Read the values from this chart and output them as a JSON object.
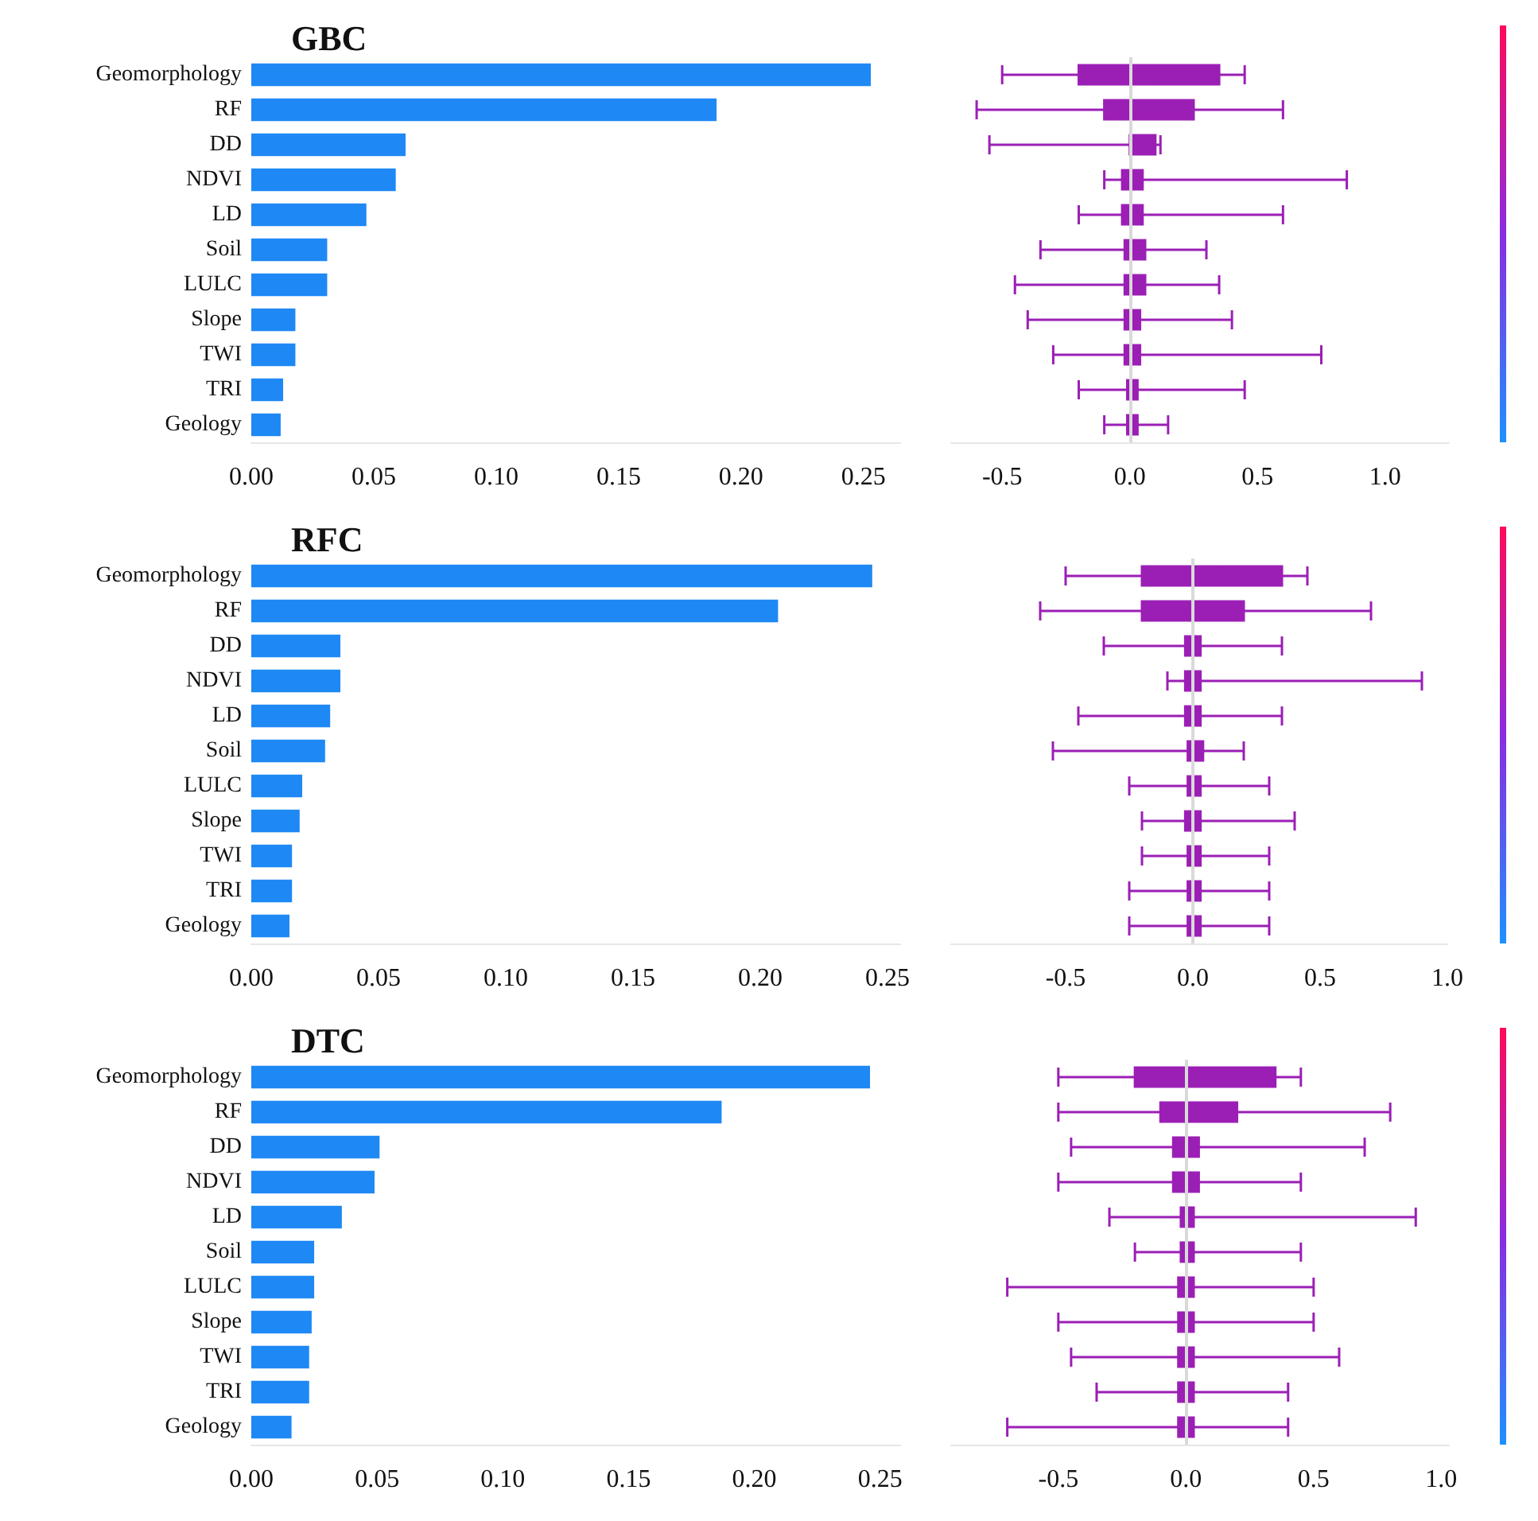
{
  "chart_data": [
    {
      "type": "bar",
      "orientation": "horizontal",
      "title": "GBC",
      "categories": [
        "Geomorphology",
        "RF",
        "DD",
        "NDVI",
        "LD",
        "Soil",
        "LULC",
        "Slope",
        "TWI",
        "TRI",
        "Geology"
      ],
      "series": [
        {
          "color": "#1e88f5",
          "values": [
            0.253,
            0.19,
            0.063,
            0.059,
            0.047,
            0.031,
            0.031,
            0.018,
            0.018,
            0.013,
            0.012
          ]
        }
      ],
      "xlim": [
        0,
        0.265
      ],
      "xticks": [
        {
          "value": 0,
          "label": "0.00"
        },
        {
          "value": 0.05,
          "label": "0.05"
        },
        {
          "value": 0.1,
          "label": "0.10"
        },
        {
          "value": 0.15,
          "label": "0.15"
        },
        {
          "value": 0.2,
          "label": "0.20"
        },
        {
          "value": 0.25,
          "label": "0.25"
        }
      ],
      "grid": false
    },
    {
      "type": "box",
      "orientation": "horizontal",
      "categories": [
        null,
        null,
        null,
        null,
        null,
        null,
        null,
        null,
        null,
        null,
        null
      ],
      "tick_labels": "x",
      "series": [
        {
          "color": "#9b1fb5",
          "boxes": [
            {
              "low": -0.5,
              "q1": -0.2,
              "median": 0.1,
              "q3": 0.35,
              "high": 0.45
            },
            {
              "low": -0.6,
              "q1": -0.1,
              "median": 0.15,
              "q3": 0.25,
              "high": 0.6
            },
            {
              "low": -0.55,
              "q1": 0.0,
              "median": 0.05,
              "q3": 0.1,
              "high": 0.12
            },
            {
              "low": -0.1,
              "q1": -0.03,
              "median": 0.0,
              "q3": 0.05,
              "high": 0.85
            },
            {
              "low": -0.2,
              "q1": -0.03,
              "median": 0.0,
              "q3": 0.05,
              "high": 0.6
            },
            {
              "low": -0.35,
              "q1": -0.02,
              "median": 0.02,
              "q3": 0.06,
              "high": 0.3
            },
            {
              "low": -0.45,
              "q1": -0.02,
              "median": 0.02,
              "q3": 0.06,
              "high": 0.35
            },
            {
              "low": -0.4,
              "q1": -0.02,
              "median": 0.01,
              "q3": 0.04,
              "high": 0.4
            },
            {
              "low": -0.3,
              "q1": -0.02,
              "median": 0.01,
              "q3": 0.04,
              "high": 0.75
            },
            {
              "low": -0.2,
              "q1": -0.01,
              "median": 0.01,
              "q3": 0.03,
              "high": 0.45
            },
            {
              "low": -0.1,
              "q1": -0.01,
              "median": 0.01,
              "q3": 0.03,
              "high": 0.15
            }
          ]
        }
      ],
      "xlim": [
        -0.7,
        1.25
      ],
      "xticks": [
        {
          "value": -0.5,
          "label": "-0.5"
        },
        {
          "value": 0,
          "label": "0.0"
        },
        {
          "value": 0.5,
          "label": "0.5"
        },
        {
          "value": 1,
          "label": "1.0"
        }
      ],
      "ref_lines": [
        {
          "axis": "x",
          "value": 0,
          "color": "#d9d9d9"
        }
      ],
      "grid": false
    },
    {
      "type": "bar",
      "orientation": "horizontal",
      "title": "RFC",
      "categories": [
        "Geomorphology",
        "RF",
        "DD",
        "NDVI",
        "LD",
        "Soil",
        "LULC",
        "Slope",
        "TWI",
        "TRI",
        "Geology"
      ],
      "series": [
        {
          "color": "#1e88f5",
          "values": [
            0.244,
            0.207,
            0.035,
            0.035,
            0.031,
            0.029,
            0.02,
            0.019,
            0.016,
            0.016,
            0.015
          ]
        }
      ],
      "xlim": [
        0,
        0.255
      ],
      "xticks": [
        {
          "value": 0,
          "label": "0.00"
        },
        {
          "value": 0.05,
          "label": "0.05"
        },
        {
          "value": 0.1,
          "label": "0.10"
        },
        {
          "value": 0.15,
          "label": "0.15"
        },
        {
          "value": 0.2,
          "label": "0.20"
        },
        {
          "value": 0.25,
          "label": "0.25"
        }
      ],
      "grid": false
    },
    {
      "type": "box",
      "orientation": "horizontal",
      "categories": [
        null,
        null,
        null,
        null,
        null,
        null,
        null,
        null,
        null,
        null,
        null
      ],
      "tick_labels": "x",
      "series": [
        {
          "color": "#9b1fb5",
          "boxes": [
            {
              "low": -0.5,
              "q1": -0.2,
              "median": 0.1,
              "q3": 0.35,
              "high": 0.45
            },
            {
              "low": -0.6,
              "q1": -0.2,
              "median": 0.1,
              "q3": 0.2,
              "high": 0.7
            },
            {
              "low": -0.35,
              "q1": -0.03,
              "median": 0.0,
              "q3": 0.03,
              "high": 0.35
            },
            {
              "low": -0.1,
              "q1": -0.03,
              "median": 0.0,
              "q3": 0.03,
              "high": 0.9
            },
            {
              "low": -0.45,
              "q1": -0.03,
              "median": 0.0,
              "q3": 0.03,
              "high": 0.35
            },
            {
              "low": -0.55,
              "q1": -0.02,
              "median": 0.01,
              "q3": 0.04,
              "high": 0.2
            },
            {
              "low": -0.25,
              "q1": -0.02,
              "median": 0.0,
              "q3": 0.03,
              "high": 0.3
            },
            {
              "low": -0.2,
              "q1": -0.03,
              "median": 0.0,
              "q3": 0.03,
              "high": 0.4
            },
            {
              "low": -0.2,
              "q1": -0.02,
              "median": 0.01,
              "q3": 0.03,
              "high": 0.3
            },
            {
              "low": -0.25,
              "q1": -0.02,
              "median": 0.0,
              "q3": 0.03,
              "high": 0.3
            },
            {
              "low": -0.25,
              "q1": -0.02,
              "median": 0.0,
              "q3": 0.03,
              "high": 0.3
            }
          ]
        }
      ],
      "xlim": [
        -0.95,
        1.0
      ],
      "xticks": [
        {
          "value": -0.5,
          "label": "-0.5"
        },
        {
          "value": 0,
          "label": "0.0"
        },
        {
          "value": 0.5,
          "label": "0.5"
        },
        {
          "value": 1,
          "label": "1.0"
        }
      ],
      "ref_lines": [
        {
          "axis": "x",
          "value": 0,
          "color": "#d9d9d9"
        }
      ],
      "grid": false
    },
    {
      "type": "bar",
      "orientation": "horizontal",
      "title": "DTC",
      "categories": [
        "Geomorphology",
        "RF",
        "DD",
        "NDVI",
        "LD",
        "Soil",
        "LULC",
        "Slope",
        "TWI",
        "TRI",
        "Geology"
      ],
      "series": [
        {
          "color": "#1e88f5",
          "values": [
            0.246,
            0.187,
            0.051,
            0.049,
            0.036,
            0.025,
            0.025,
            0.024,
            0.023,
            0.023,
            0.016
          ]
        }
      ],
      "xlim": [
        0,
        0.258
      ],
      "xticks": [
        {
          "value": 0,
          "label": "0.00"
        },
        {
          "value": 0.05,
          "label": "0.05"
        },
        {
          "value": 0.1,
          "label": "0.10"
        },
        {
          "value": 0.15,
          "label": "0.15"
        },
        {
          "value": 0.2,
          "label": "0.20"
        },
        {
          "value": 0.25,
          "label": "0.25"
        }
      ],
      "grid": false
    },
    {
      "type": "box",
      "orientation": "horizontal",
      "categories": [
        null,
        null,
        null,
        null,
        null,
        null,
        null,
        null,
        null,
        null,
        null
      ],
      "tick_labels": "x",
      "series": [
        {
          "color": "#9b1fb5",
          "boxes": [
            {
              "low": -0.5,
              "q1": -0.2,
              "median": 0.0,
              "q3": 0.35,
              "high": 0.45
            },
            {
              "low": -0.5,
              "q1": -0.1,
              "median": 0.1,
              "q3": 0.2,
              "high": 0.8
            },
            {
              "low": -0.45,
              "q1": -0.05,
              "median": 0.0,
              "q3": 0.05,
              "high": 0.7
            },
            {
              "low": -0.5,
              "q1": -0.05,
              "median": 0.0,
              "q3": 0.05,
              "high": 0.45
            },
            {
              "low": -0.3,
              "q1": -0.02,
              "median": 0.0,
              "q3": 0.03,
              "high": 0.9
            },
            {
              "low": -0.2,
              "q1": -0.02,
              "median": 0.0,
              "q3": 0.03,
              "high": 0.45
            },
            {
              "low": -0.7,
              "q1": -0.03,
              "median": 0.0,
              "q3": 0.03,
              "high": 0.5
            },
            {
              "low": -0.5,
              "q1": -0.03,
              "median": 0.0,
              "q3": 0.03,
              "high": 0.5
            },
            {
              "low": -0.45,
              "q1": -0.03,
              "median": 0.0,
              "q3": 0.03,
              "high": 0.6
            },
            {
              "low": -0.35,
              "q1": -0.03,
              "median": 0.0,
              "q3": 0.03,
              "high": 0.4
            },
            {
              "low": -0.7,
              "q1": -0.03,
              "median": 0.0,
              "q3": 0.03,
              "high": 0.4
            }
          ]
        }
      ],
      "xlim": [
        -0.92,
        1.03
      ],
      "xticks": [
        {
          "value": -0.5,
          "label": "-0.5"
        },
        {
          "value": 0,
          "label": "0.0"
        },
        {
          "value": 0.5,
          "label": "0.5"
        },
        {
          "value": 1,
          "label": "1.0"
        }
      ],
      "ref_lines": [
        {
          "axis": "x",
          "value": 0,
          "color": "#d9d9d9"
        }
      ],
      "grid": false
    }
  ]
}
